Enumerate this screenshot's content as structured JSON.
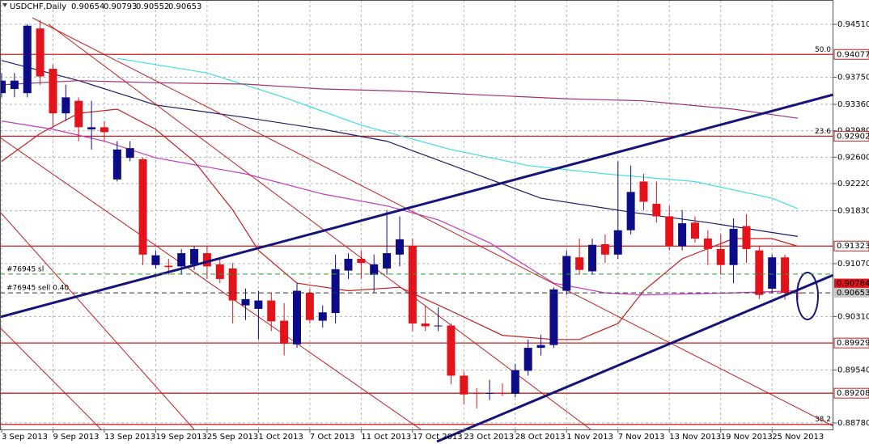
{
  "chart_data": {
    "type": "candlestick",
    "title": "USDCHF,Daily",
    "header_ohlc": [
      0.90654,
      0.90793,
      0.90552,
      0.90653
    ],
    "categories": [
      "3 Sep 2013",
      null,
      null,
      null,
      "9 Sep 2013",
      null,
      null,
      null,
      "13 Sep 2013",
      null,
      null,
      null,
      "19 Sep 2013",
      null,
      null,
      null,
      "25 Sep 2013",
      null,
      null,
      null,
      "1 Oct 2013",
      null,
      null,
      null,
      "7 Oct 2013",
      null,
      null,
      null,
      "11 Oct 2013",
      null,
      null,
      null,
      "17 Oct 2013",
      null,
      null,
      null,
      "23 Oct 2013",
      null,
      null,
      null,
      "28 Oct 2013",
      null,
      null,
      null,
      "1 Nov 2013",
      null,
      null,
      null,
      "7 Nov 2013",
      null,
      null,
      null,
      "13 Nov 2013",
      null,
      null,
      null,
      "19 Nov 2013",
      null,
      null,
      null,
      "25 Nov 2013",
      null,
      null
    ],
    "open": [
      0.9352,
      0.9358,
      0.9352,
      0.9445,
      0.9387,
      0.9323,
      0.9341,
      0.93,
      0.9303,
      0.9228,
      0.9259,
      0.9257,
      0.9105,
      0.9104,
      0.9103,
      0.9106,
      0.9122,
      0.9106,
      0.91,
      0.9047,
      0.9042,
      0.9054,
      0.9025,
      0.8991,
      0.9065,
      0.9025,
      0.9036,
      0.9097,
      0.9114,
      0.9091,
      0.91,
      0.912,
      0.9132,
      0.9021,
      0.9017,
      0.9018,
      0.8946,
      0.8921,
      0.892,
      0.8921,
      0.892,
      0.8953,
      0.8986,
      0.899,
      0.9068,
      0.9116,
      0.9096,
      0.9135,
      0.912,
      0.9155,
      0.9225,
      0.9193,
      0.9175,
      0.9132,
      0.9166,
      0.9143,
      0.9128,
      0.9105,
      0.9161,
      0.9126,
      0.9071,
      0.9116,
      0.90654
    ],
    "high": [
      0.9381,
      0.9381,
      0.9451,
      0.9457,
      0.9393,
      0.9364,
      0.9346,
      0.9341,
      0.9312,
      0.9283,
      0.9283,
      0.9259,
      0.9126,
      0.9114,
      0.9128,
      0.9132,
      0.9133,
      0.9114,
      0.9108,
      0.9071,
      0.9068,
      0.9065,
      0.905,
      0.9079,
      0.9071,
      0.9047,
      0.912,
      0.9122,
      0.9126,
      0.912,
      0.9184,
      0.9175,
      0.9143,
      0.9047,
      0.9044,
      0.9021,
      0.8952,
      0.8928,
      0.894,
      0.8935,
      0.8963,
      0.8998,
      0.9005,
      0.9073,
      0.9126,
      0.9143,
      0.9143,
      0.9149,
      0.9254,
      0.9248,
      0.9236,
      0.9225,
      0.919,
      0.9184,
      0.9175,
      0.9155,
      0.9149,
      0.9172,
      0.9178,
      0.9132,
      0.912,
      0.912,
      0.90793
    ],
    "low": [
      0.9346,
      0.9346,
      0.9346,
      0.9364,
      0.9303,
      0.9312,
      0.9283,
      0.9271,
      0.9283,
      0.9225,
      0.9254,
      0.9105,
      0.91,
      0.9091,
      0.9091,
      0.9098,
      0.9085,
      0.9079,
      0.9021,
      0.9026,
      0.8998,
      0.901,
      0.8975,
      0.8986,
      0.9021,
      0.9015,
      0.9021,
      0.9085,
      0.9085,
      0.9065,
      0.9091,
      0.9103,
      0.901,
      0.901,
      0.901,
      0.8934,
      0.8905,
      0.8899,
      0.8911,
      0.8917,
      0.8915,
      0.8946,
      0.8975,
      0.8986,
      0.9062,
      0.9091,
      0.9091,
      0.9108,
      0.9114,
      0.9149,
      0.9184,
      0.9166,
      0.9126,
      0.9126,
      0.9137,
      0.9105,
      0.9091,
      0.9079,
      0.9108,
      0.9056,
      0.9065,
      0.9055,
      0.90552
    ],
    "close": [
      0.937,
      0.937,
      0.9449,
      0.9376,
      0.9323,
      0.9346,
      0.9303,
      0.9303,
      0.9296,
      0.9271,
      0.9273,
      0.912,
      0.9119,
      0.9102,
      0.9122,
      0.9128,
      0.9103,
      0.9085,
      0.9054,
      0.9056,
      0.9054,
      0.9024,
      0.8992,
      0.9068,
      0.9026,
      0.9037,
      0.9099,
      0.9114,
      0.9108,
      0.9106,
      0.9122,
      0.9142,
      0.9021,
      0.9017,
      0.9018,
      0.8946,
      0.8919,
      0.892,
      0.8921,
      0.892,
      0.8954,
      0.8986,
      0.899,
      0.907,
      0.9118,
      0.9098,
      0.9134,
      0.912,
      0.9155,
      0.921,
      0.9196,
      0.9175,
      0.9132,
      0.9165,
      0.9143,
      0.9128,
      0.9105,
      0.9157,
      0.9128,
      0.9062,
      0.9116,
      0.9065,
      0.90653
    ],
    "up_color": "#0c0c86",
    "down_color": "#e3131b",
    "ylim": [
      0.88687,
      0.94859
    ],
    "yticks": [
      {
        "value": 0.9451,
        "label": "0.94510"
      },
      {
        "value": 0.9375,
        "label": "0.93750"
      },
      {
        "value": 0.9336,
        "label": "0.93360"
      },
      {
        "value": 0.9298,
        "label": "0.92980"
      },
      {
        "value": 0.926,
        "label": "0.92600"
      },
      {
        "value": 0.9222,
        "label": "0.92220"
      },
      {
        "value": 0.9183,
        "label": "0.91830"
      },
      {
        "value": 0.9107,
        "label": "0.91070"
      },
      {
        "value": 0.9031,
        "label": "0.90310"
      },
      {
        "value": 0.8954,
        "label": "0.89540"
      },
      {
        "value": 0.8878,
        "label": "0.88780"
      }
    ],
    "grid": true,
    "levels": [
      {
        "price": 0.94077,
        "fib": "50.0",
        "tag": true
      },
      {
        "price": 0.92902,
        "fib": "23.6",
        "tag": true
      },
      {
        "price": 0.91323,
        "tag": true
      },
      {
        "price": 0.89929,
        "tag": true
      },
      {
        "price": 0.89208,
        "tag": true
      },
      {
        "price": 0.8876,
        "fib": "38.2",
        "tag": false
      }
    ],
    "price_tags": [
      {
        "price": 0.90784,
        "color": "#e3131b"
      },
      {
        "price": 0.90653,
        "color": "#c8c8c8"
      }
    ],
    "orders": [
      {
        "label": "#76945 sl",
        "price": 0.9092,
        "color": "#2e9e2e"
      },
      {
        "label": "#76945 sell 0.40",
        "price": 0.9065,
        "color": "#333333"
      }
    ],
    "overlays": [
      {
        "color": "#1b1b6e",
        "x": [
          0,
          6,
          12,
          19,
          25,
          30,
          36,
          42,
          49,
          55,
          62
        ],
        "values": [
          0.9399,
          0.937,
          0.9335,
          0.9317,
          0.93,
          0.9283,
          0.9242,
          0.9201,
          0.9181,
          0.9166,
          0.9146
        ]
      },
      {
        "color": "#3fdde6",
        "x": [
          9,
          16,
          22,
          28,
          35,
          41,
          47,
          54,
          60,
          62
        ],
        "values": [
          0.9402,
          0.9381,
          0.9346,
          0.9306,
          0.9271,
          0.9248,
          0.9236,
          0.9225,
          0.9201,
          0.9186
        ]
      },
      {
        "color": "#a0307a",
        "x": [
          0,
          6,
          12,
          19,
          25,
          31,
          38,
          44,
          50,
          57,
          62
        ],
        "values": [
          0.9364,
          0.937,
          0.9367,
          0.9365,
          0.9358,
          0.9355,
          0.9349,
          0.9344,
          0.9341,
          0.9329,
          0.9316
        ]
      },
      {
        "color": "#c23cc2",
        "x": [
          0,
          4,
          8,
          12,
          19,
          25,
          30,
          34,
          38,
          41,
          43,
          47,
          50,
          57,
          62
        ],
        "values": [
          0.9312,
          0.93,
          0.9283,
          0.9259,
          0.9236,
          0.9207,
          0.919,
          0.917,
          0.9137,
          0.9102,
          0.9079,
          0.9065,
          0.9062,
          0.9065,
          0.9068
        ]
      },
      {
        "color": "#c81e1e",
        "x": [
          0,
          3,
          6,
          9,
          12,
          15,
          18,
          20,
          23,
          27,
          31,
          35,
          39,
          43,
          45,
          48,
          50,
          53,
          57,
          60,
          62
        ],
        "values": [
          0.9254,
          0.9294,
          0.9323,
          0.9329,
          0.93,
          0.9254,
          0.9184,
          0.9126,
          0.9079,
          0.9068,
          0.9073,
          0.9039,
          0.9004,
          0.8998,
          0.8998,
          0.9021,
          0.9068,
          0.9114,
          0.9143,
          0.9143,
          0.9132
        ]
      }
    ]
  }
}
